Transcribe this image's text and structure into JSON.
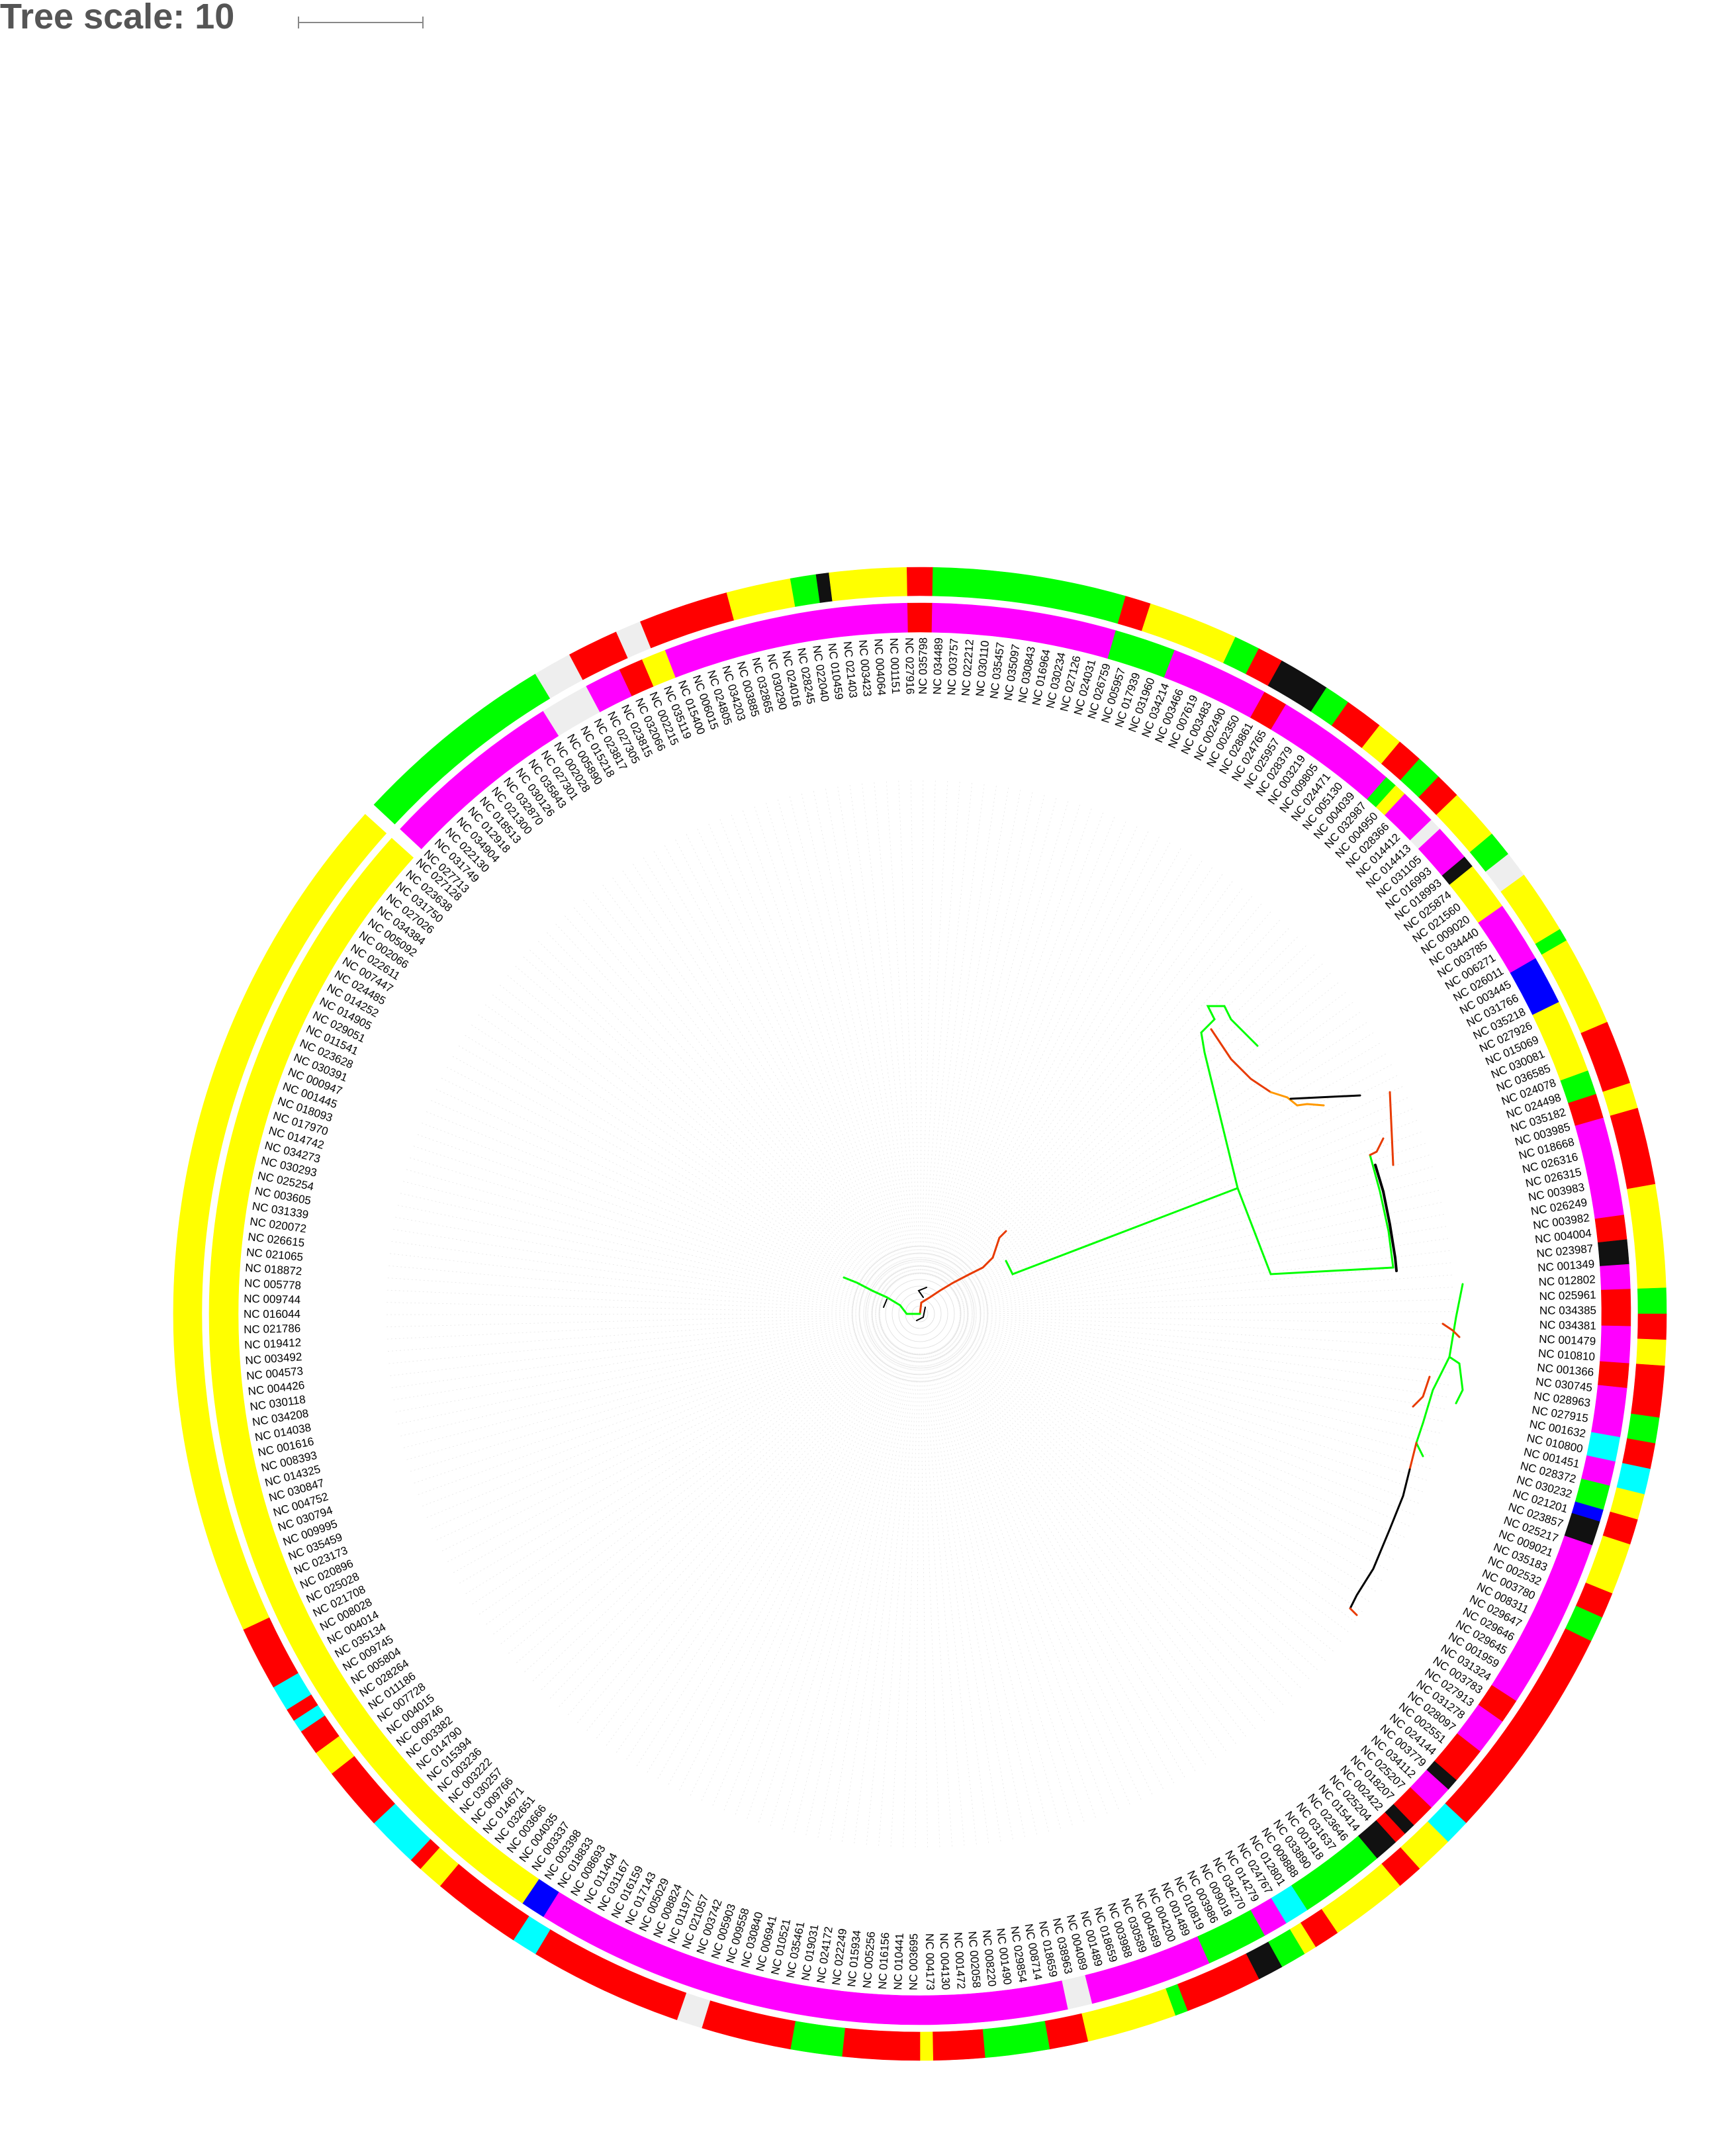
{
  "legend": {
    "title": "Tree scale: 10"
  },
  "colors": {
    "red": "#ff0000",
    "green": "#00ff00",
    "yellow": "#ffff00",
    "magenta": "#ff00ff",
    "black": "#111111",
    "blue": "#0000ff",
    "cyan": "#00ffff",
    "gray": "#eeeeee"
  },
  "labels_cw_from_top_left": [
    "NC 027128",
    "NC 023638",
    "NC 031750",
    "NC 027026",
    "NC 034384",
    "NC 005092",
    "NC 002066",
    "NC 022611",
    "NC 007447",
    "NC 024485",
    "NC 014252",
    "NC 014905",
    "NC 029051",
    "NC 011541",
    "NC 023628",
    "NC 030391",
    "NC 000947",
    "NC 001445",
    "NC 018093",
    "NC 017970",
    "NC 014742",
    "NC 034273",
    "NC 030293",
    "NC 025254",
    "NC 003605",
    "NC 031339",
    "NC 020072",
    "NC 026615",
    "NC 021065",
    "NC 018872",
    "NC 005778",
    "NC 009744",
    "NC 016044",
    "NC 021786",
    "NC 019412",
    "NC 003492",
    "NC 004573",
    "NC 004426",
    "NC 030118",
    "NC 034208",
    "NC 014038",
    "NC 001616",
    "NC 008393",
    "NC 014325",
    "NC 030847",
    "NC 004752",
    "NC 030794",
    "NC 009995",
    "NC 035459",
    "NC 023173",
    "NC 020896",
    "NC 025028",
    "NC 021708",
    "NC 008028",
    "NC 004014",
    "NC 035134",
    "NC 009745",
    "NC 005804",
    "NC 028264",
    "NC 011186",
    "NC 007728",
    "NC 004015",
    "NC 009746",
    "NC 003382",
    "NC 014790",
    "NC 015394",
    "NC 003236",
    "NC 003222",
    "NC 030257",
    "NC 009766",
    "NC 014671",
    "NC 032651",
    "NC 003666",
    "NC 004035",
    "NC 003337",
    "NC 003398",
    "NC 018833",
    "NC 008693",
    "NC 011404",
    "NC 031167",
    "NC 016159",
    "NC 017143",
    "NC 005029",
    "NC 008824",
    "NC 011977",
    "NC 021057",
    "NC 003742",
    "NC 005903",
    "NC 009558",
    "NC 030840",
    "NC 006941",
    "NC 010521",
    "NC 035461",
    "NC 019031",
    "NC 024172",
    "NC 022249",
    "NC 015934",
    "NC 005256",
    "NC 016156",
    "NC 010441",
    "NC 003695",
    "NC 004173",
    "NC 004130",
    "NC 001472",
    "NC 002058",
    "NC 008220",
    "NC 001490",
    "NC 029854",
    "NC 008714",
    "NC 018659",
    "NC 038963",
    "NC 004089",
    "NC 001489",
    "NC 018659",
    "NC 003988",
    "NC 030589",
    "NC 004589",
    "NC 004200",
    "NC 001489",
    "NC 010819",
    "NC 003986",
    "NC 009018",
    "NC 034270",
    "NC 014279",
    "NC 024767",
    "NC 012801",
    "NC 009888",
    "NC 033890",
    "NC 001918",
    "NC 031637",
    "NC 023646",
    "NC 015414",
    "NC 025204",
    "NC 002422",
    "NC 018207",
    "NC 025207",
    "NC 034112",
    "NC 003779",
    "NC 024144",
    "NC 002551",
    "NC 028097",
    "NC 031278",
    "NC 027913",
    "NC 003783",
    "NC 031324",
    "NC 001959",
    "NC 029645",
    "NC 029646",
    "NC 029647",
    "NC 008311",
    "NC 003780",
    "NC 002532",
    "NC 035183",
    "NC 009021",
    "NC 025217",
    "NC 023857",
    "NC 021201",
    "NC 030232",
    "NC 028372",
    "NC 001451",
    "NC 010800",
    "NC 001632",
    "NC 027915",
    "NC 028963",
    "NC 030745",
    "NC 001366",
    "NC 010810",
    "NC 001479",
    "NC 034381",
    "NC 034385",
    "NC 025961",
    "NC 012802",
    "NC 001349",
    "NC 023987",
    "NC 004004",
    "NC 003982",
    "NC 026249",
    "NC 003983",
    "NC 026315",
    "NC 026316",
    "NC 018668",
    "NC 003985",
    "NC 035182",
    "NC 024498",
    "NC 024078",
    "NC 036585",
    "NC 030081",
    "NC 015069",
    "NC 027926",
    "NC 035218",
    "NC 031766",
    "NC 003445",
    "NC 026011",
    "NC 006271",
    "NC 003785",
    "NC 034440",
    "NC 009020",
    "NC 021560",
    "NC 025874",
    "NC 018993",
    "NC 016993",
    "NC 031105",
    "NC 014413",
    "NC 014412",
    "NC 028366",
    "NC 004950",
    "NC 032987",
    "NC 004039",
    "NC 005130",
    "NC 024471",
    "NC 009805",
    "NC 003219",
    "NC 028379",
    "NC 025957",
    "NC 024765",
    "NC 028861",
    "NC 002350",
    "NC 002490",
    "NC 003483",
    "NC 007619",
    "NC 003466",
    "NC 034214",
    "NC 031960",
    "NC 017939",
    "NC 005957",
    "NC 026759",
    "NC 024031",
    "NC 027126",
    "NC 030234",
    "NC 016964",
    "NC 030843",
    "NC 035097",
    "NC 035457",
    "NC 030110",
    "NC 022212",
    "NC 003757",
    "NC 034489",
    "NC 035798",
    "NC 027916",
    "NC 001151",
    "NC 004064",
    "NC 003423",
    "NC 021403",
    "NC 010459",
    "NC 022040",
    "NC 028245",
    "NC 024016",
    "NC 030290",
    "NC 032865",
    "NC 003885",
    "NC 034203",
    "NC 024805",
    "NC 006015",
    "NC 015400",
    "NC 035119",
    "NC 002215",
    "NC 032066",
    "NC 023815",
    "NC 027305",
    "NC 023817",
    "NC 015218",
    "NC 005890",
    "NC 002028",
    "NC 027301",
    "NC 035843",
    "NC 030126",
    "NC 032870",
    "NC 021300",
    "NC 018513",
    "NC 012918",
    "NC 034904",
    "NC 022130",
    "NC 031749",
    "NC 027713"
  ]
}
